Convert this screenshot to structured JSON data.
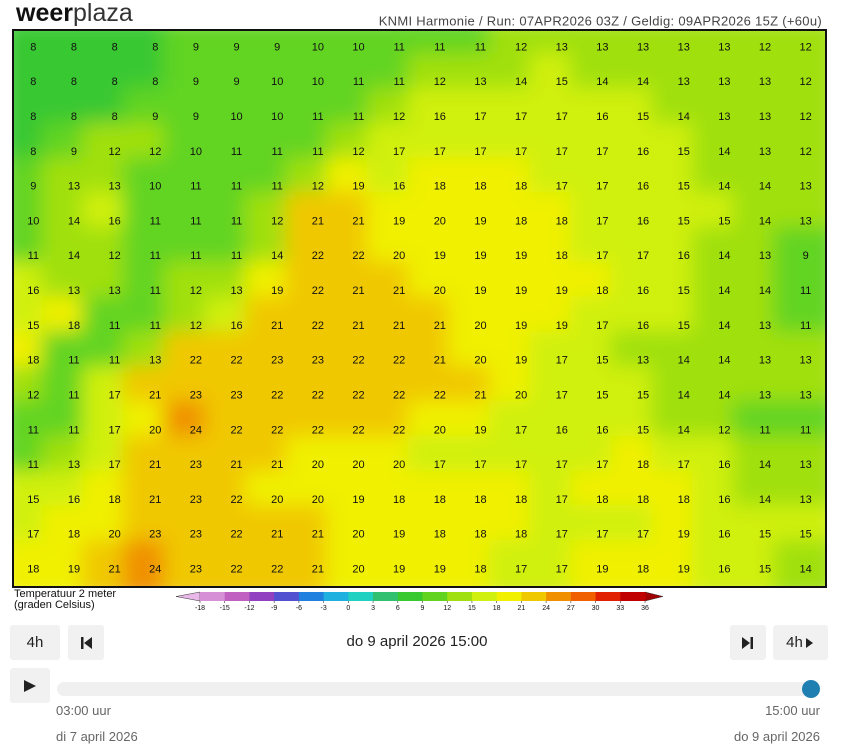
{
  "header": {
    "logo_part1": "weer",
    "logo_part2": "plaza",
    "run_info": "KNMI Harmonie / Run: 07APR2026 03Z / Geldig: 09APR2026 15Z (+60u)"
  },
  "map": {
    "rows": [
      [
        8,
        8,
        8,
        8,
        9,
        9,
        9,
        10,
        10,
        11,
        11,
        11,
        12,
        13,
        13,
        13,
        13,
        13,
        12,
        12
      ],
      [
        8,
        8,
        8,
        8,
        9,
        9,
        10,
        10,
        11,
        11,
        12,
        13,
        14,
        15,
        14,
        14,
        13,
        13,
        13,
        12
      ],
      [
        8,
        8,
        8,
        9,
        9,
        10,
        10,
        11,
        11,
        12,
        16,
        17,
        17,
        17,
        16,
        15,
        14,
        13,
        13,
        12
      ],
      [
        8,
        9,
        12,
        12,
        10,
        11,
        11,
        11,
        12,
        17,
        17,
        17,
        17,
        17,
        17,
        16,
        15,
        14,
        13,
        12
      ],
      [
        9,
        13,
        13,
        10,
        11,
        11,
        11,
        12,
        19,
        16,
        18,
        18,
        18,
        17,
        17,
        16,
        15,
        14,
        14,
        13
      ],
      [
        10,
        14,
        16,
        11,
        11,
        11,
        12,
        21,
        21,
        19,
        20,
        19,
        18,
        18,
        17,
        16,
        15,
        15,
        14,
        13
      ],
      [
        11,
        14,
        12,
        11,
        11,
        11,
        14,
        22,
        22,
        20,
        19,
        19,
        19,
        18,
        17,
        17,
        16,
        14,
        13,
        9
      ],
      [
        16,
        13,
        13,
        11,
        12,
        13,
        19,
        22,
        21,
        21,
        20,
        19,
        19,
        19,
        18,
        16,
        15,
        14,
        14,
        11
      ],
      [
        15,
        18,
        11,
        11,
        12,
        16,
        21,
        22,
        21,
        21,
        21,
        20,
        19,
        19,
        17,
        16,
        15,
        14,
        13,
        11
      ],
      [
        18,
        11,
        11,
        13,
        22,
        22,
        23,
        23,
        22,
        22,
        21,
        20,
        19,
        17,
        15,
        13,
        14,
        14,
        13,
        13
      ],
      [
        12,
        11,
        17,
        21,
        23,
        23,
        22,
        22,
        22,
        22,
        22,
        21,
        20,
        17,
        15,
        15,
        14,
        14,
        13,
        13
      ],
      [
        11,
        11,
        17,
        20,
        24,
        22,
        22,
        22,
        22,
        22,
        20,
        19,
        17,
        16,
        16,
        15,
        14,
        12,
        11,
        11
      ],
      [
        11,
        13,
        17,
        21,
        23,
        21,
        21,
        20,
        20,
        20,
        17,
        17,
        17,
        17,
        17,
        18,
        17,
        16,
        14,
        13
      ],
      [
        15,
        16,
        18,
        21,
        23,
        22,
        20,
        20,
        19,
        18,
        18,
        18,
        18,
        17,
        18,
        18,
        18,
        16,
        14,
        13
      ],
      [
        17,
        18,
        20,
        23,
        23,
        22,
        21,
        21,
        20,
        19,
        18,
        18,
        18,
        17,
        17,
        17,
        19,
        16,
        15,
        15
      ],
      [
        18,
        19,
        21,
        24,
        23,
        22,
        22,
        21,
        20,
        19,
        19,
        18,
        17,
        17,
        19,
        18,
        19,
        16,
        15,
        14
      ]
    ]
  },
  "legend": {
    "title_line1": "Temperatuur 2 meter",
    "title_line2": "(graden Celsius)",
    "ticks": [
      -18,
      -15,
      -12,
      -9,
      -6,
      -3,
      0,
      3,
      6,
      9,
      12,
      15,
      18,
      21,
      24,
      27,
      30,
      33,
      36
    ],
    "colors": [
      "#d690d6",
      "#c060c0",
      "#9040c0",
      "#5050d0",
      "#2080e0",
      "#20b0e0",
      "#20d0c0",
      "#30c070",
      "#38c830",
      "#62d420",
      "#a0e010",
      "#d0f010",
      "#f0f000",
      "#f0c800",
      "#f09000",
      "#f06000",
      "#e02000",
      "#c00000"
    ]
  },
  "controls": {
    "step_back": "4h",
    "current_time": "do 9 april 2026 15:00",
    "step_forward": "4h",
    "slider_start_time": "03:00 uur",
    "slider_end_time": "15:00 uur",
    "slider_start_date": "di 7 april 2026",
    "slider_end_date": "do 9 april 2026"
  }
}
